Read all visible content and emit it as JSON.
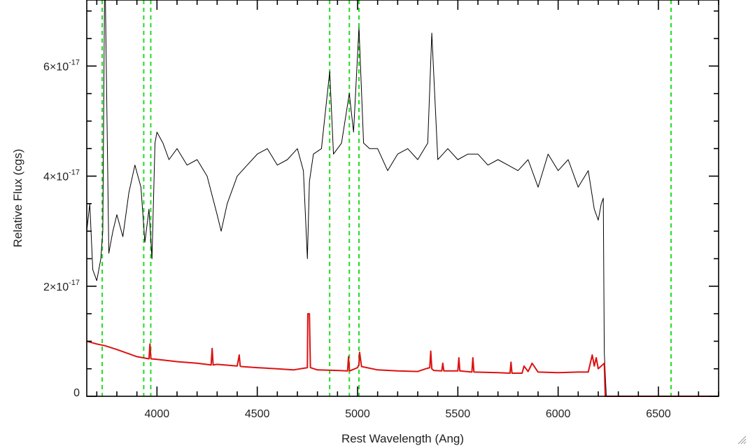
{
  "chart_data": {
    "type": "line",
    "title": "",
    "xlabel": "Rest Wavelength (Ang)",
    "ylabel": "Relative Flux (cgs)",
    "xlim": [
      3650,
      6800
    ],
    "ylim": [
      0,
      7.2e-17
    ],
    "x_ticks": [
      {
        "value": 4000,
        "label": "4000"
      },
      {
        "value": 4500,
        "label": "4500"
      },
      {
        "value": 5000,
        "label": "5000"
      },
      {
        "value": 5500,
        "label": "5500"
      },
      {
        "value": 6000,
        "label": "6000"
      },
      {
        "value": 6500,
        "label": "6500"
      }
    ],
    "y_ticks": [
      {
        "value": 0,
        "label": "0"
      },
      {
        "value": 2e-17,
        "mantissa": "2×10",
        "exponent": "-17"
      },
      {
        "value": 4e-17,
        "mantissa": "4×10",
        "exponent": "-17"
      },
      {
        "value": 6e-17,
        "mantissa": "6×10",
        "exponent": "-17"
      }
    ],
    "grid": false,
    "reference_lines": {
      "color": "#22dd22",
      "style": "dashed",
      "x": [
        3727,
        3934,
        3969,
        4861,
        4959,
        5007,
        6563
      ]
    },
    "series": [
      {
        "color": "#000000",
        "x": [
          3650,
          3665,
          3680,
          3700,
          3720,
          3730,
          3740,
          3760,
          3780,
          3800,
          3830,
          3860,
          3890,
          3920,
          3940,
          3960,
          3975,
          3990,
          4000,
          4030,
          4060,
          4100,
          4150,
          4200,
          4250,
          4300,
          4320,
          4350,
          4400,
          4450,
          4500,
          4550,
          4600,
          4650,
          4700,
          4730,
          4750,
          4760,
          4780,
          4820,
          4861,
          4880,
          4920,
          4959,
          4980,
          5007,
          5030,
          5060,
          5100,
          5150,
          5200,
          5250,
          5300,
          5350,
          5370,
          5400,
          5450,
          5500,
          5550,
          5600,
          5650,
          5700,
          5750,
          5800,
          5850,
          5900,
          5950,
          6000,
          6050,
          6100,
          6150,
          6180,
          6200,
          6215,
          6225,
          6230,
          6240
        ],
        "y": [
          3e-17,
          3.5e-17,
          2.3e-17,
          2.1e-17,
          2.5e-17,
          3e-17,
          8e-17,
          2.6e-17,
          3e-17,
          3.3e-17,
          2.9e-17,
          3.7e-17,
          4.2e-17,
          3.8e-17,
          2.8e-17,
          3.4e-17,
          2.5e-17,
          4.6e-17,
          4.8e-17,
          4.6e-17,
          4.3e-17,
          4.5e-17,
          4.2e-17,
          4.3e-17,
          4e-17,
          3.3e-17,
          3e-17,
          3.5e-17,
          4e-17,
          4.2e-17,
          4.4e-17,
          4.5e-17,
          4.2e-17,
          4.3e-17,
          4.5e-17,
          4.1e-17,
          2.5e-17,
          3.9e-17,
          4.4e-17,
          4.5e-17,
          5.9e-17,
          4.4e-17,
          4.6e-17,
          5.5e-17,
          4.8e-17,
          6.7e-17,
          4.6e-17,
          4.5e-17,
          4.5e-17,
          4.1e-17,
          4.4e-17,
          4.5e-17,
          4.3e-17,
          4.6e-17,
          6.6e-17,
          4.3e-17,
          4.5e-17,
          4.3e-17,
          4.4e-17,
          4.4e-17,
          4.2e-17,
          4.3e-17,
          4.2e-17,
          4.1e-17,
          4.3e-17,
          3.8e-17,
          4.4e-17,
          4.1e-17,
          4.3e-17,
          3.8e-17,
          4.1e-17,
          3.4e-17,
          3.2e-17,
          3.5e-17,
          3.6e-17,
          8e-18,
          0
        ]
      },
      {
        "color": "#dd1111",
        "x": [
          3650,
          3700,
          3740,
          3800,
          3900,
          3960,
          3965,
          3970,
          4000,
          4100,
          4200,
          4270,
          4275,
          4280,
          4300,
          4400,
          4410,
          4415,
          4420,
          4500,
          4600,
          4680,
          4750,
          4752,
          4760,
          4765,
          4800,
          4900,
          4950,
          4955,
          4960,
          5000,
          5007,
          5010,
          5020,
          5100,
          5200,
          5300,
          5340,
          5360,
          5365,
          5370,
          5380,
          5420,
          5425,
          5430,
          5500,
          5505,
          5510,
          5570,
          5575,
          5580,
          5700,
          5760,
          5765,
          5770,
          5820,
          5830,
          5850,
          5860,
          5870,
          5900,
          6000,
          6100,
          6150,
          6170,
          6180,
          6190,
          6200,
          6230,
          6235,
          6240,
          6800
        ],
        "y": [
          1e-17,
          9.5e-18,
          9.2e-18,
          8.5e-18,
          7.2e-18,
          6.8e-18,
          9.5e-18,
          6.8e-18,
          6.7e-18,
          6.3e-18,
          6e-18,
          5.7e-18,
          8.7e-18,
          5.7e-18,
          5.8e-18,
          5.5e-18,
          7.5e-18,
          5.5e-18,
          5.4e-18,
          5.2e-18,
          5e-18,
          4.8e-18,
          5.2e-18,
          1.5e-17,
          1.5e-17,
          5.2e-18,
          4.8e-18,
          4.7e-18,
          4.6e-18,
          7.2e-18,
          4.6e-18,
          5.2e-18,
          5.8e-18,
          8e-18,
          5.4e-18,
          4.8e-18,
          4.6e-18,
          4.5e-18,
          5e-18,
          5.2e-18,
          8.2e-18,
          5e-18,
          4.7e-18,
          4.6e-18,
          6e-18,
          4.6e-18,
          4.6e-18,
          7e-18,
          4.6e-18,
          4.4e-18,
          7e-18,
          4.4e-18,
          4.3e-18,
          4.2e-18,
          6.2e-18,
          4.2e-18,
          4.2e-18,
          5.5e-18,
          4.5e-18,
          5.2e-18,
          6e-18,
          4.4e-18,
          4.3e-18,
          4.4e-18,
          4.4e-18,
          7.5e-18,
          5.5e-18,
          7e-18,
          5e-18,
          6e-18,
          0,
          0,
          0
        ]
      }
    ]
  }
}
